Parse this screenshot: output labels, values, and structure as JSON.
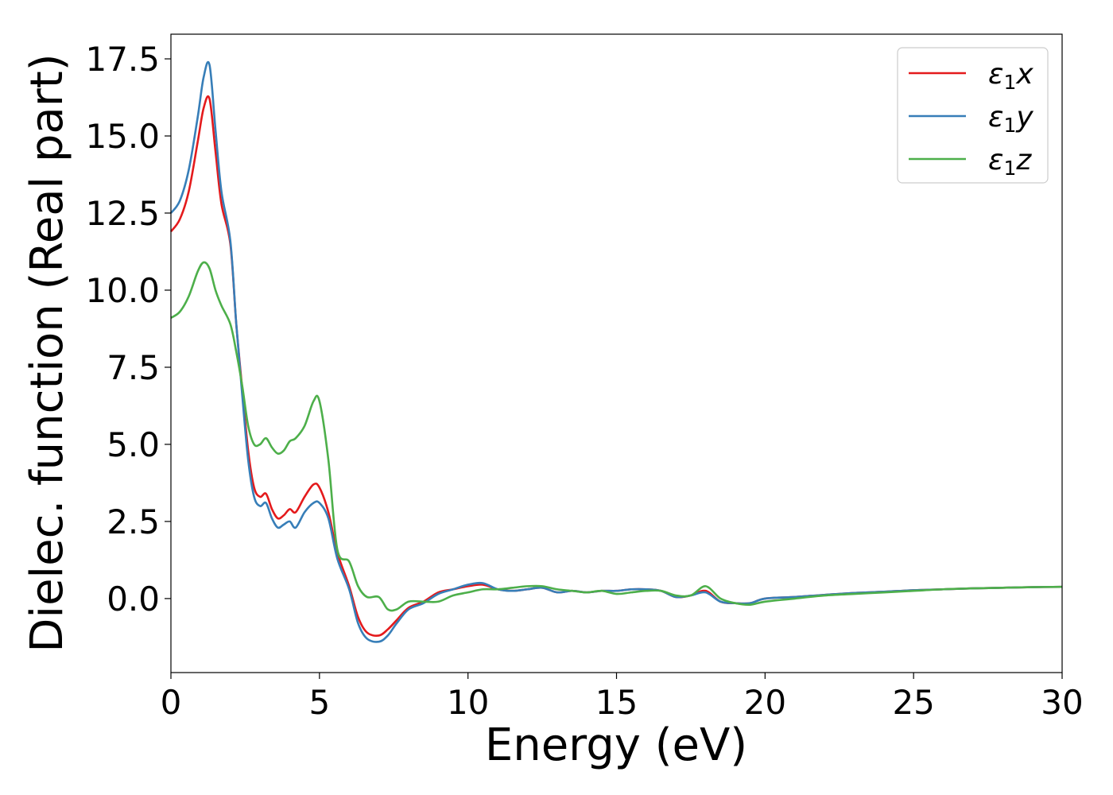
{
  "chart_data": {
    "type": "line",
    "title": "",
    "xlabel": "Energy (eV)",
    "ylabel": "Dielec. function (Real part)",
    "xlim": [
      0,
      30
    ],
    "ylim": [
      -2.4,
      18.3
    ],
    "xticks": [
      0,
      5,
      10,
      15,
      20,
      25,
      30
    ],
    "xtick_labels": [
      "0",
      "5",
      "10",
      "15",
      "20",
      "25",
      "30"
    ],
    "yticks": [
      0,
      2.5,
      5,
      7.5,
      10,
      12.5,
      15,
      17.5
    ],
    "ytick_labels": [
      "0.0",
      "2.5",
      "5.0",
      "7.5",
      "10.0",
      "12.5",
      "15.0",
      "17.5"
    ],
    "grid": false,
    "legend_position": "top-right",
    "series": [
      {
        "name": "ε1x",
        "legend_main": "ε",
        "legend_sub": "1",
        "legend_suffix": "x",
        "color": "#e41a1c",
        "x": [
          0,
          0.3,
          0.6,
          0.9,
          1.1,
          1.3,
          1.5,
          1.7,
          2.0,
          2.2,
          2.4,
          2.6,
          2.8,
          3.0,
          3.2,
          3.4,
          3.6,
          3.8,
          4.0,
          4.2,
          4.5,
          4.8,
          5.0,
          5.3,
          5.6,
          6.0,
          6.3,
          6.6,
          7.0,
          7.3,
          7.6,
          8.0,
          8.5,
          9.0,
          9.5,
          10.0,
          10.5,
          11.0,
          11.5,
          12.0,
          12.5,
          13.0,
          13.5,
          14.0,
          14.5,
          15.0,
          15.5,
          16.0,
          16.5,
          17.0,
          17.5,
          18.0,
          18.5,
          19.0,
          19.5,
          20.0,
          21.0,
          22.0,
          23.0,
          24.0,
          25.0,
          26.0,
          27.0,
          28.0,
          29.0,
          30.0
        ],
        "y": [
          11.9,
          12.3,
          13.2,
          14.8,
          15.9,
          16.2,
          14.5,
          12.8,
          11.5,
          8.9,
          6.8,
          4.8,
          3.6,
          3.3,
          3.4,
          2.9,
          2.6,
          2.7,
          2.9,
          2.8,
          3.3,
          3.7,
          3.6,
          2.8,
          1.5,
          0.4,
          -0.6,
          -1.1,
          -1.2,
          -1.0,
          -0.7,
          -0.3,
          -0.1,
          0.2,
          0.3,
          0.4,
          0.45,
          0.3,
          0.25,
          0.3,
          0.35,
          0.2,
          0.25,
          0.2,
          0.25,
          0.25,
          0.3,
          0.3,
          0.25,
          0.05,
          0.1,
          0.25,
          -0.1,
          -0.15,
          -0.15,
          0.0,
          0.05,
          0.12,
          0.18,
          0.22,
          0.27,
          0.3,
          0.33,
          0.35,
          0.37,
          0.38
        ]
      },
      {
        "name": "ε1y",
        "legend_main": "ε",
        "legend_sub": "1",
        "legend_suffix": "y",
        "color": "#377eb8",
        "x": [
          0,
          0.3,
          0.6,
          0.9,
          1.1,
          1.3,
          1.5,
          1.7,
          2.0,
          2.2,
          2.4,
          2.6,
          2.8,
          3.0,
          3.2,
          3.4,
          3.6,
          3.8,
          4.0,
          4.2,
          4.5,
          4.8,
          5.0,
          5.3,
          5.6,
          6.0,
          6.3,
          6.6,
          7.0,
          7.3,
          7.6,
          8.0,
          8.5,
          9.0,
          9.5,
          10.0,
          10.5,
          11.0,
          11.5,
          12.0,
          12.5,
          13.0,
          13.5,
          14.0,
          14.5,
          15.0,
          15.5,
          16.0,
          16.5,
          17.0,
          17.5,
          18.0,
          18.5,
          19.0,
          19.5,
          20.0,
          21.0,
          22.0,
          23.0,
          24.0,
          25.0,
          26.0,
          27.0,
          28.0,
          29.0,
          30.0
        ],
        "y": [
          12.5,
          12.9,
          13.9,
          15.6,
          16.9,
          17.3,
          15.2,
          13.2,
          11.6,
          8.9,
          6.6,
          4.5,
          3.3,
          3.0,
          3.1,
          2.6,
          2.3,
          2.4,
          2.5,
          2.3,
          2.8,
          3.1,
          3.1,
          2.6,
          1.3,
          0.3,
          -0.8,
          -1.3,
          -1.4,
          -1.2,
          -0.8,
          -0.35,
          -0.15,
          0.15,
          0.3,
          0.45,
          0.5,
          0.3,
          0.25,
          0.3,
          0.35,
          0.2,
          0.25,
          0.2,
          0.25,
          0.25,
          0.3,
          0.3,
          0.25,
          0.05,
          0.1,
          0.2,
          -0.1,
          -0.15,
          -0.15,
          0.0,
          0.05,
          0.12,
          0.18,
          0.22,
          0.27,
          0.3,
          0.33,
          0.35,
          0.37,
          0.38
        ]
      },
      {
        "name": "ε1z",
        "legend_main": "ε",
        "legend_sub": "1",
        "legend_suffix": "z",
        "color": "#4daf4a",
        "x": [
          0,
          0.3,
          0.6,
          0.9,
          1.1,
          1.3,
          1.5,
          1.7,
          2.0,
          2.2,
          2.4,
          2.6,
          2.8,
          3.0,
          3.2,
          3.4,
          3.6,
          3.8,
          4.0,
          4.2,
          4.5,
          4.8,
          5.0,
          5.3,
          5.6,
          6.0,
          6.3,
          6.6,
          7.0,
          7.3,
          7.6,
          8.0,
          8.5,
          9.0,
          9.5,
          10.0,
          10.5,
          11.0,
          11.5,
          12.0,
          12.5,
          13.0,
          13.5,
          14.0,
          14.5,
          15.0,
          15.5,
          16.0,
          16.5,
          17.0,
          17.5,
          18.0,
          18.5,
          19.0,
          19.5,
          20.0,
          21.0,
          22.0,
          23.0,
          24.0,
          25.0,
          26.0,
          27.0,
          28.0,
          29.0,
          30.0
        ],
        "y": [
          9.1,
          9.3,
          9.8,
          10.6,
          10.9,
          10.7,
          10.0,
          9.5,
          8.9,
          8.0,
          6.9,
          5.6,
          5.0,
          5.0,
          5.2,
          4.9,
          4.7,
          4.8,
          5.1,
          5.2,
          5.6,
          6.4,
          6.4,
          4.5,
          1.6,
          1.2,
          0.4,
          0.05,
          0.05,
          -0.35,
          -0.35,
          -0.1,
          -0.1,
          -0.1,
          0.1,
          0.2,
          0.3,
          0.3,
          0.35,
          0.4,
          0.4,
          0.3,
          0.25,
          0.2,
          0.25,
          0.15,
          0.2,
          0.25,
          0.25,
          0.1,
          0.1,
          0.4,
          0.0,
          -0.15,
          -0.2,
          -0.1,
          0.0,
          0.1,
          0.15,
          0.2,
          0.25,
          0.3,
          0.33,
          0.35,
          0.37,
          0.38
        ]
      }
    ]
  }
}
